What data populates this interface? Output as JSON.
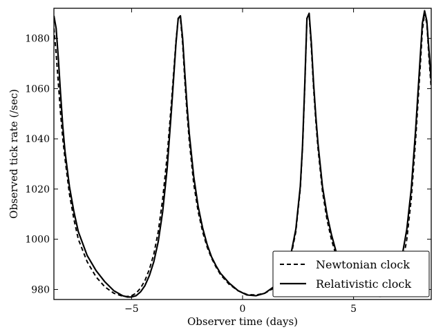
{
  "chart_data": {
    "type": "line",
    "title": "",
    "xlabel": "Observer time (days)",
    "ylabel": "Observed tick rate (/sec)",
    "xlim": [
      -8.5,
      8.5
    ],
    "ylim": [
      976,
      1092
    ],
    "x_ticks": [
      -5,
      0,
      5
    ],
    "y_ticks": [
      980,
      1000,
      1020,
      1040,
      1060,
      1080
    ],
    "grid": false,
    "legend": {
      "placement": "bottom-right"
    },
    "series": [
      {
        "name": "Newtonian clock",
        "style": "dashed",
        "color": "#000000",
        "x": [
          -8.5,
          -8.4,
          -8.3,
          -8.2,
          -8.1,
          -8.0,
          -7.8,
          -7.6,
          -7.4,
          -7.0,
          -6.6,
          -6.2,
          -5.8,
          -5.4,
          -5.2,
          -5.0,
          -4.8,
          -4.6,
          -4.4,
          -4.2,
          -4.0,
          -3.8,
          -3.6,
          -3.4,
          -3.2,
          -3.0,
          -2.9,
          -2.8,
          -2.7,
          -2.6,
          -2.5,
          -2.4,
          -2.2,
          -2.0,
          -1.8,
          -1.6,
          -1.4,
          -1.2,
          -1.0,
          -0.6,
          -0.2,
          0.2,
          0.6,
          1.0,
          1.4,
          1.8,
          2.2,
          2.4,
          2.6,
          2.7,
          2.8,
          2.9,
          3.0,
          3.1,
          3.2,
          3.3,
          3.4,
          3.6,
          3.8,
          4.0,
          4.2,
          4.4,
          4.6,
          4.8,
          5.0,
          5.4,
          5.8,
          6.2,
          6.4,
          6.6,
          6.8,
          7.0,
          7.2,
          7.4,
          7.6,
          7.8,
          8.0,
          8.1,
          8.2,
          8.3,
          8.4,
          8.5
        ],
        "y": [
          1084,
          1074,
          1062,
          1050,
          1040,
          1032,
          1018,
          1008,
          1000,
          991,
          985,
          981,
          978.5,
          977.3,
          977.2,
          977.5,
          978.5,
          980.5,
          983.5,
          988,
          994,
          1003,
          1016,
          1033,
          1055,
          1079,
          1088,
          1088,
          1078,
          1063,
          1050,
          1039,
          1022,
          1011,
          1003,
          997,
          992.5,
          989,
          986,
          982,
          979.5,
          978,
          977.8,
          978.5,
          980.5,
          985,
          994,
          1003,
          1020,
          1036,
          1060,
          1088,
          1089,
          1076,
          1060,
          1047,
          1036,
          1019,
          1008,
          1000,
          994,
          989.5,
          986,
          983,
          981,
          978.5,
          977.4,
          977.2,
          977.4,
          978.2,
          980,
          983.5,
          990,
          1000,
          1016,
          1040,
          1068,
          1083,
          1090,
          1086,
          1072,
          1060
        ]
      },
      {
        "name": "Relativistic clock",
        "style": "solid",
        "color": "#000000",
        "x": [
          -8.5,
          -8.4,
          -8.3,
          -8.2,
          -8.1,
          -8.0,
          -7.8,
          -7.6,
          -7.4,
          -7.0,
          -6.6,
          -6.2,
          -5.8,
          -5.4,
          -5.2,
          -5.0,
          -4.8,
          -4.6,
          -4.4,
          -4.2,
          -4.0,
          -3.8,
          -3.6,
          -3.4,
          -3.2,
          -3.0,
          -2.9,
          -2.8,
          -2.7,
          -2.6,
          -2.5,
          -2.4,
          -2.2,
          -2.0,
          -1.8,
          -1.6,
          -1.4,
          -1.2,
          -1.0,
          -0.6,
          -0.2,
          0.2,
          0.6,
          1.0,
          1.4,
          1.8,
          2.2,
          2.4,
          2.6,
          2.7,
          2.8,
          2.9,
          3.0,
          3.1,
          3.2,
          3.3,
          3.4,
          3.6,
          3.8,
          4.0,
          4.2,
          4.4,
          4.6,
          4.8,
          5.0,
          5.4,
          5.8,
          6.2,
          6.4,
          6.6,
          6.8,
          7.0,
          7.2,
          7.4,
          7.6,
          7.8,
          8.0,
          8.1,
          8.2,
          8.3,
          8.4,
          8.5
        ],
        "y": [
          1089,
          1084,
          1072,
          1058,
          1045,
          1035,
          1021,
          1011,
          1003,
          993.5,
          987.5,
          983,
          979.5,
          977.5,
          977,
          977,
          977.5,
          979,
          981.5,
          985.5,
          991,
          999,
          1011,
          1028,
          1052,
          1078,
          1088,
          1089,
          1080,
          1066,
          1053,
          1042,
          1025,
          1013,
          1004.5,
          998,
          993,
          989.5,
          986.5,
          982.5,
          979.5,
          977.8,
          977.5,
          978.5,
          981,
          986,
          995,
          1004,
          1021,
          1037,
          1061,
          1088,
          1090,
          1078,
          1062,
          1049,
          1038,
          1021,
          1010,
          1002,
          995.5,
          990.5,
          986.5,
          983.5,
          981,
          978.5,
          977.5,
          977.6,
          978.3,
          979.8,
          982.5,
          987,
          994,
          1004,
          1020,
          1044,
          1072,
          1086,
          1091,
          1087,
          1075,
          1063
        ]
      }
    ]
  }
}
